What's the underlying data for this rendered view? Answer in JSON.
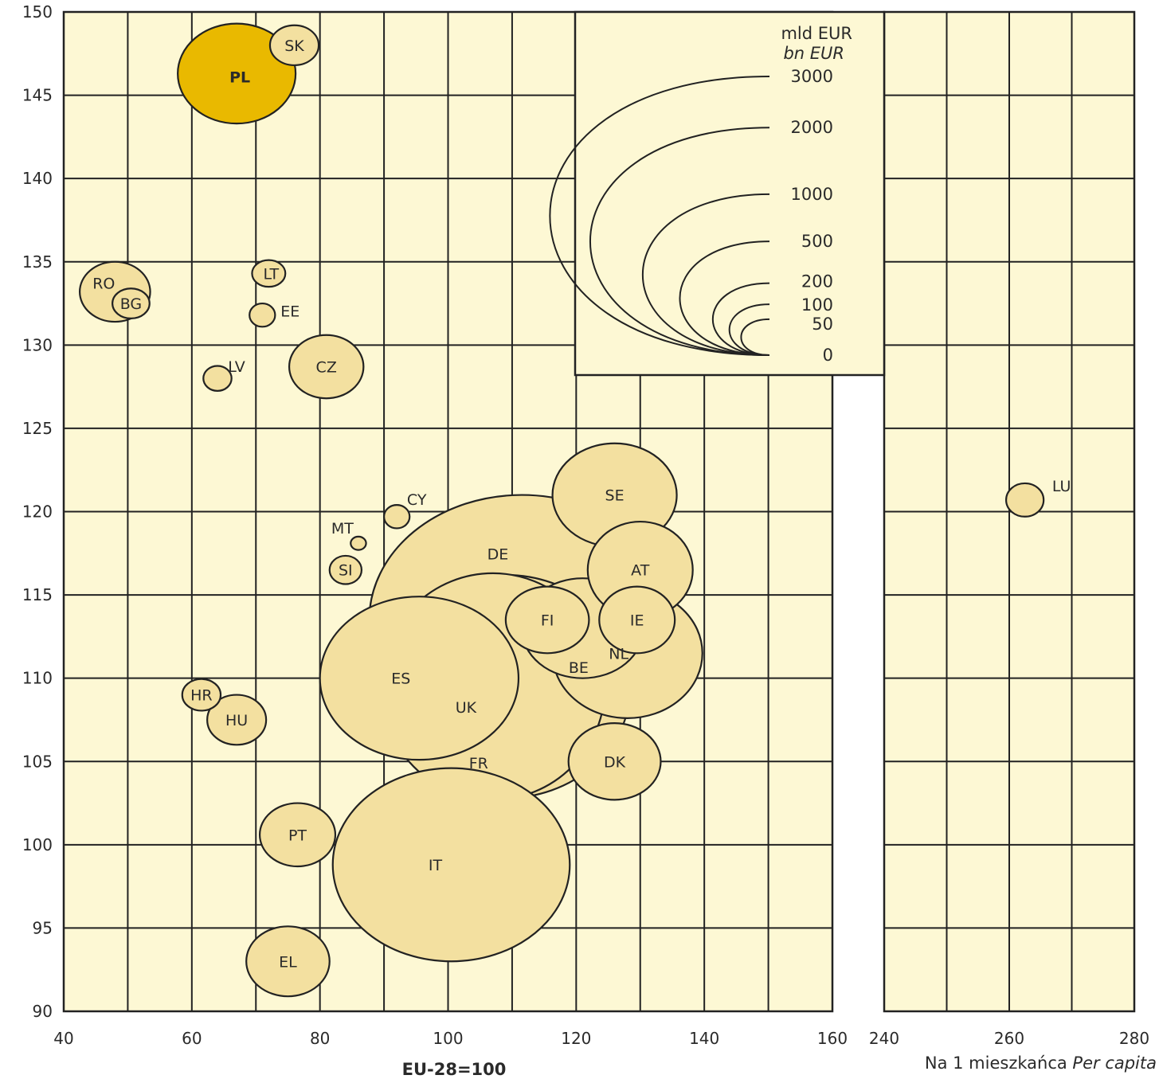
{
  "chart_data": {
    "type": "scatter",
    "subtype": "bubble",
    "colors": {
      "background": "#fdf8d4",
      "bubble": "#f3e0a0",
      "highlight": "#e9b900",
      "stroke": "#222222",
      "grid": "#222222"
    },
    "xlabel": "EU-28=100",
    "xlabel_right": {
      "plain": "Na 1 mieszkańca",
      "italic": "Per capita"
    },
    "ylim": [
      90,
      150
    ],
    "y_ticks": [
      "90",
      "95",
      "100",
      "105",
      "110",
      "115",
      "120",
      "125",
      "130",
      "135",
      "140",
      "145",
      "150"
    ],
    "x_main_range": [
      40,
      160
    ],
    "x_main_ticks": [
      "40",
      "60",
      "80",
      "100",
      "120",
      "140",
      "160"
    ],
    "x_right_range": [
      240,
      280
    ],
    "x_right_ticks": [
      "240",
      "260",
      "280"
    ],
    "size_legend": {
      "title": "mld EUR",
      "subtitle": "bn EUR",
      "levels": [
        {
          "value": 3000,
          "label": "3000"
        },
        {
          "value": 2000,
          "label": "2000"
        },
        {
          "value": 1000,
          "label": "1000"
        },
        {
          "value": 500,
          "label": "500"
        },
        {
          "value": 200,
          "label": "200"
        },
        {
          "value": 100,
          "label": "100"
        },
        {
          "value": 50,
          "label": "50"
        },
        {
          "value": 0,
          "label": "0"
        }
      ]
    },
    "series": [
      {
        "label": "DE",
        "x": 111.5,
        "y": 113.5,
        "size": 3050,
        "rx": 23.8,
        "ry": 7.5
      },
      {
        "label": "FR",
        "x": 107,
        "y": 109.5,
        "size": 2230,
        "rx": 17.5,
        "ry": 6.8
      },
      {
        "label": "UK",
        "x": 109,
        "y": 109.5,
        "size": 2380,
        "rx": 19.5,
        "ry": 6.7
      },
      {
        "label": "IT",
        "x": 100.5,
        "y": 98.8,
        "size": 1680,
        "rx": 18.5,
        "ry": 5.8
      },
      {
        "label": "ES",
        "x": 95.5,
        "y": 110,
        "size": 1120,
        "rx": 15.5,
        "ry": 4.9
      },
      {
        "label": "NL",
        "x": 128,
        "y": 111.5,
        "size": 700,
        "rx": 11.7,
        "ry": 3.9
      },
      {
        "label": "SE",
        "x": 126,
        "y": 121,
        "size": 460,
        "rx": 9.7,
        "ry": 3.1
      },
      {
        "label": "BE",
        "x": 121,
        "y": 113,
        "size": 420,
        "rx": 9.5,
        "ry": 3.0
      },
      {
        "label": "AT",
        "x": 130,
        "y": 116.5,
        "size": 350,
        "rx": 8.2,
        "ry": 2.9
      },
      {
        "label": "PL",
        "x": 67,
        "y": 146.3,
        "size": 430,
        "rx": 9.2,
        "ry": 3.0
      },
      {
        "label": "DK",
        "x": 126,
        "y": 105,
        "size": 270,
        "rx": 7.2,
        "ry": 2.3
      },
      {
        "label": "IE",
        "x": 129.5,
        "y": 113.5,
        "size": 230,
        "rx": 5.9,
        "ry": 2.0
      },
      {
        "label": "FI",
        "x": 115.5,
        "y": 113.5,
        "size": 210,
        "rx": 6.5,
        "ry": 2.0
      },
      {
        "label": "PT",
        "x": 76.5,
        "y": 100.6,
        "size": 180,
        "rx": 5.9,
        "ry": 1.9
      },
      {
        "label": "EL",
        "x": 75,
        "y": 93,
        "size": 180,
        "rx": 6.5,
        "ry": 2.1
      },
      {
        "label": "CZ",
        "x": 81,
        "y": 128.7,
        "size": 165,
        "rx": 5.8,
        "ry": 1.9
      },
      {
        "label": "RO",
        "x": 48,
        "y": 133.2,
        "size": 160,
        "rx": 5.5,
        "ry": 1.8
      },
      {
        "label": "HU",
        "x": 67,
        "y": 107.5,
        "size": 110,
        "rx": 4.6,
        "ry": 1.5
      },
      {
        "label": "SK",
        "x": 76,
        "y": 148,
        "size": 75,
        "rx": 3.8,
        "ry": 1.2
      },
      {
        "label": "HR",
        "x": 61.5,
        "y": 109,
        "size": 45,
        "rx": 3.0,
        "ry": 0.95
      },
      {
        "label": "BG",
        "x": 50.5,
        "y": 132.5,
        "size": 40,
        "rx": 2.9,
        "ry": 0.9
      },
      {
        "label": "SI",
        "x": 84,
        "y": 116.5,
        "size": 38,
        "rx": 2.5,
        "ry": 0.85
      },
      {
        "label": "LT",
        "x": 72,
        "y": 134.3,
        "size": 35,
        "rx": 2.6,
        "ry": 0.8
      },
      {
        "label": "LV",
        "x": 64,
        "y": 128,
        "size": 22,
        "rx": 2.2,
        "ry": 0.75
      },
      {
        "label": "EE",
        "x": 71,
        "y": 131.8,
        "size": 20,
        "rx": 2.0,
        "ry": 0.7
      },
      {
        "label": "CY",
        "x": 92,
        "y": 119.7,
        "size": 18,
        "rx": 2.0,
        "ry": 0.7
      },
      {
        "label": "MT",
        "x": 86,
        "y": 118.1,
        "size": 9,
        "rx": 1.2,
        "ry": 0.4
      },
      {
        "label": "LU",
        "x": 262.5,
        "y": 120.7,
        "size": 50,
        "rx": 3.0,
        "ry": 1.0
      }
    ]
  }
}
